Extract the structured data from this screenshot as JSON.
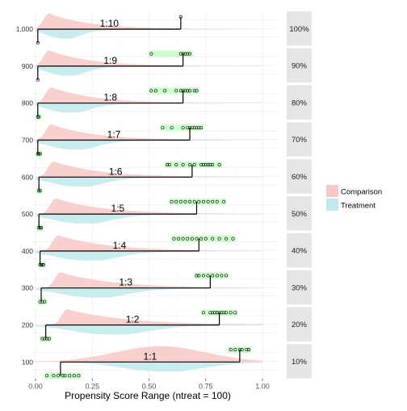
{
  "chart_data": {
    "type": "area",
    "xlabel": "Propensity Score Range (ntreat = 100)",
    "x_ticks": [
      "0.00",
      "0.25",
      "0.50",
      "0.75",
      "1.00"
    ],
    "xlim": [
      0,
      1
    ],
    "legend": {
      "position": "right",
      "entries": [
        {
          "name": "Comparison",
          "color": "#f8c8c4"
        },
        {
          "name": "Treatment",
          "color": "#bfe9ec"
        }
      ]
    },
    "colors": {
      "comparison": "#f8c8c4",
      "treatment": "#bfe9ec",
      "strip": "#e6e6e6",
      "highlight": "#ccffcc"
    },
    "panels": [
      {
        "row_label": "1,000",
        "strip": "100%",
        "ratio": "1:10",
        "seg_start": 0.01,
        "seg_end": 0.64,
        "comp_peak": 0.06,
        "treat_peak": 0.12,
        "treat_spread": 0.07,
        "points_top": [
          0.64
        ],
        "points_bottom": [
          0.01
        ]
      },
      {
        "row_label": "900",
        "strip": "90%",
        "ratio": "1:9",
        "seg_start": 0.01,
        "seg_end": 0.65,
        "comp_peak": 0.06,
        "treat_peak": 0.13,
        "treat_spread": 0.08,
        "points_top": [
          0.51,
          0.64,
          0.65,
          0.66,
          0.67,
          0.68
        ],
        "points_bottom": [
          0.01
        ]
      },
      {
        "row_label": "800",
        "strip": "80%",
        "ratio": "1:8",
        "seg_start": 0.01,
        "seg_end": 0.65,
        "comp_peak": 0.07,
        "treat_peak": 0.14,
        "treat_spread": 0.09,
        "points_top": [
          0.51,
          0.53,
          0.57,
          0.62,
          0.64,
          0.65,
          0.66,
          0.67,
          0.68,
          0.7,
          0.71
        ],
        "points_bottom": [
          0.01,
          0.015
        ]
      },
      {
        "row_label": "700",
        "strip": "70%",
        "ratio": "1:7",
        "seg_start": 0.01,
        "seg_end": 0.68,
        "comp_peak": 0.07,
        "treat_peak": 0.16,
        "treat_spread": 0.1,
        "points_top": [
          0.56,
          0.6,
          0.65,
          0.67,
          0.68,
          0.69,
          0.7,
          0.71,
          0.72,
          0.73
        ],
        "points_bottom": [
          0.01,
          0.015,
          0.02
        ]
      },
      {
        "row_label": "600",
        "strip": "60%",
        "ratio": "1:6",
        "seg_start": 0.015,
        "seg_end": 0.69,
        "comp_peak": 0.08,
        "treat_peak": 0.18,
        "treat_spread": 0.11,
        "points_top": [
          0.58,
          0.59,
          0.62,
          0.65,
          0.68,
          0.7,
          0.73,
          0.74,
          0.75,
          0.76,
          0.77,
          0.78,
          0.81
        ],
        "points_bottom": [
          0.015,
          0.02
        ]
      },
      {
        "row_label": "500",
        "strip": "50%",
        "ratio": "1:5",
        "seg_start": 0.015,
        "seg_end": 0.71,
        "comp_peak": 0.09,
        "treat_peak": 0.2,
        "treat_spread": 0.12,
        "points_top": [
          0.6,
          0.62,
          0.64,
          0.66,
          0.68,
          0.7,
          0.72,
          0.74,
          0.76,
          0.78,
          0.8,
          0.83
        ],
        "points_bottom": [
          0.015,
          0.02,
          0.025
        ]
      },
      {
        "row_label": "400",
        "strip": "40%",
        "ratio": "1:4",
        "seg_start": 0.02,
        "seg_end": 0.72,
        "comp_peak": 0.1,
        "treat_peak": 0.22,
        "treat_spread": 0.13,
        "points_top": [
          0.61,
          0.63,
          0.65,
          0.67,
          0.69,
          0.71,
          0.73,
          0.75,
          0.78,
          0.81,
          0.84,
          0.87
        ],
        "points_bottom": [
          0.02,
          0.025,
          0.03,
          0.035
        ]
      },
      {
        "row_label": "300",
        "strip": "30%",
        "ratio": "1:3",
        "seg_start": 0.025,
        "seg_end": 0.77,
        "comp_peak": 0.11,
        "treat_peak": 0.25,
        "treat_spread": 0.14,
        "points_top": [
          0.71,
          0.72,
          0.74,
          0.76,
          0.78,
          0.8,
          0.82,
          0.84
        ],
        "points_bottom": [
          0.02,
          0.03,
          0.04
        ]
      },
      {
        "row_label": "200",
        "strip": "20%",
        "ratio": "1:2",
        "seg_start": 0.045,
        "seg_end": 0.81,
        "comp_peak": 0.14,
        "treat_peak": 0.32,
        "treat_spread": 0.16,
        "points_top": [
          0.74,
          0.77,
          0.78,
          0.79,
          0.8,
          0.81,
          0.82,
          0.83,
          0.84,
          0.86,
          0.88
        ],
        "points_bottom": [
          0.03,
          0.04,
          0.05,
          0.06
        ]
      },
      {
        "row_label": "100",
        "strip": "10%",
        "ratio": "1:1",
        "seg_start": 0.11,
        "seg_end": 0.9,
        "comp_peak": 0.55,
        "treat_peak": 0.55,
        "treat_spread": 0.17,
        "points_top": [
          0.86,
          0.88,
          0.9,
          0.91,
          0.93,
          0.94
        ],
        "points_bottom": [
          0.05,
          0.08,
          0.1,
          0.12,
          0.13,
          0.15,
          0.17,
          0.19
        ]
      }
    ]
  }
}
